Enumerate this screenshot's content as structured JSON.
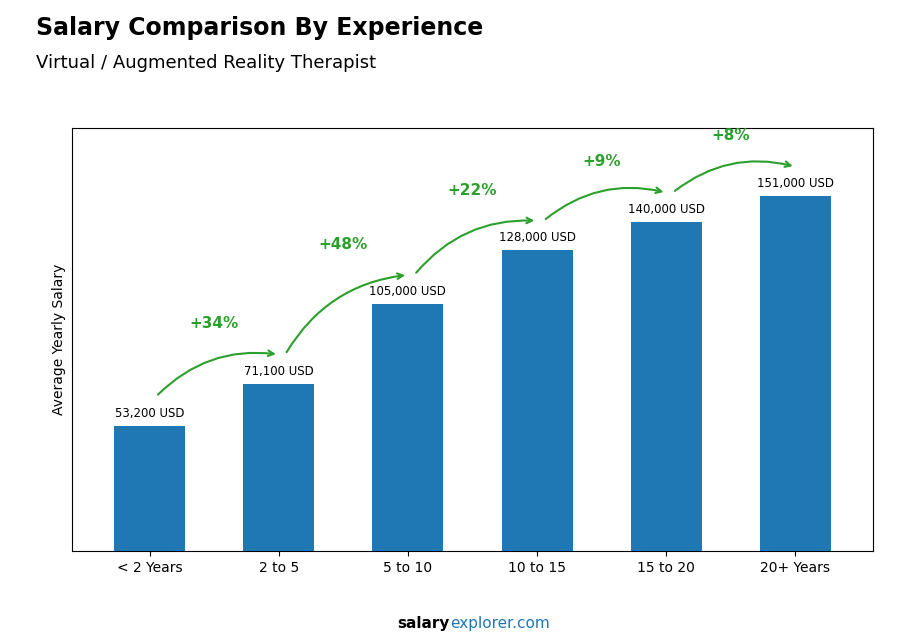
{
  "chart_data": {
    "type": "bar",
    "title": "Salary Comparison By Experience",
    "subtitle": "Virtual / Augmented Reality Therapist",
    "y_label": "Average Yearly Salary",
    "categories": [
      "< 2 Years",
      "2 to 5",
      "5 to 10",
      "10 to 15",
      "15 to 20",
      "20+ Years"
    ],
    "values": [
      53200,
      71100,
      105000,
      128000,
      140000,
      151000
    ],
    "value_labels": [
      "53,200 USD",
      "71,100 USD",
      "105,000 USD",
      "128,000 USD",
      "140,000 USD",
      "151,000 USD"
    ],
    "data_labels": true,
    "annotations": [
      "+34%",
      "+48%",
      "+22%",
      "+9%",
      "+8%"
    ],
    "footer": [
      "salary",
      "explorer.com"
    ],
    "ylim": [
      0,
      180000
    ],
    "tick_labels": "x",
    "grid": false
  }
}
